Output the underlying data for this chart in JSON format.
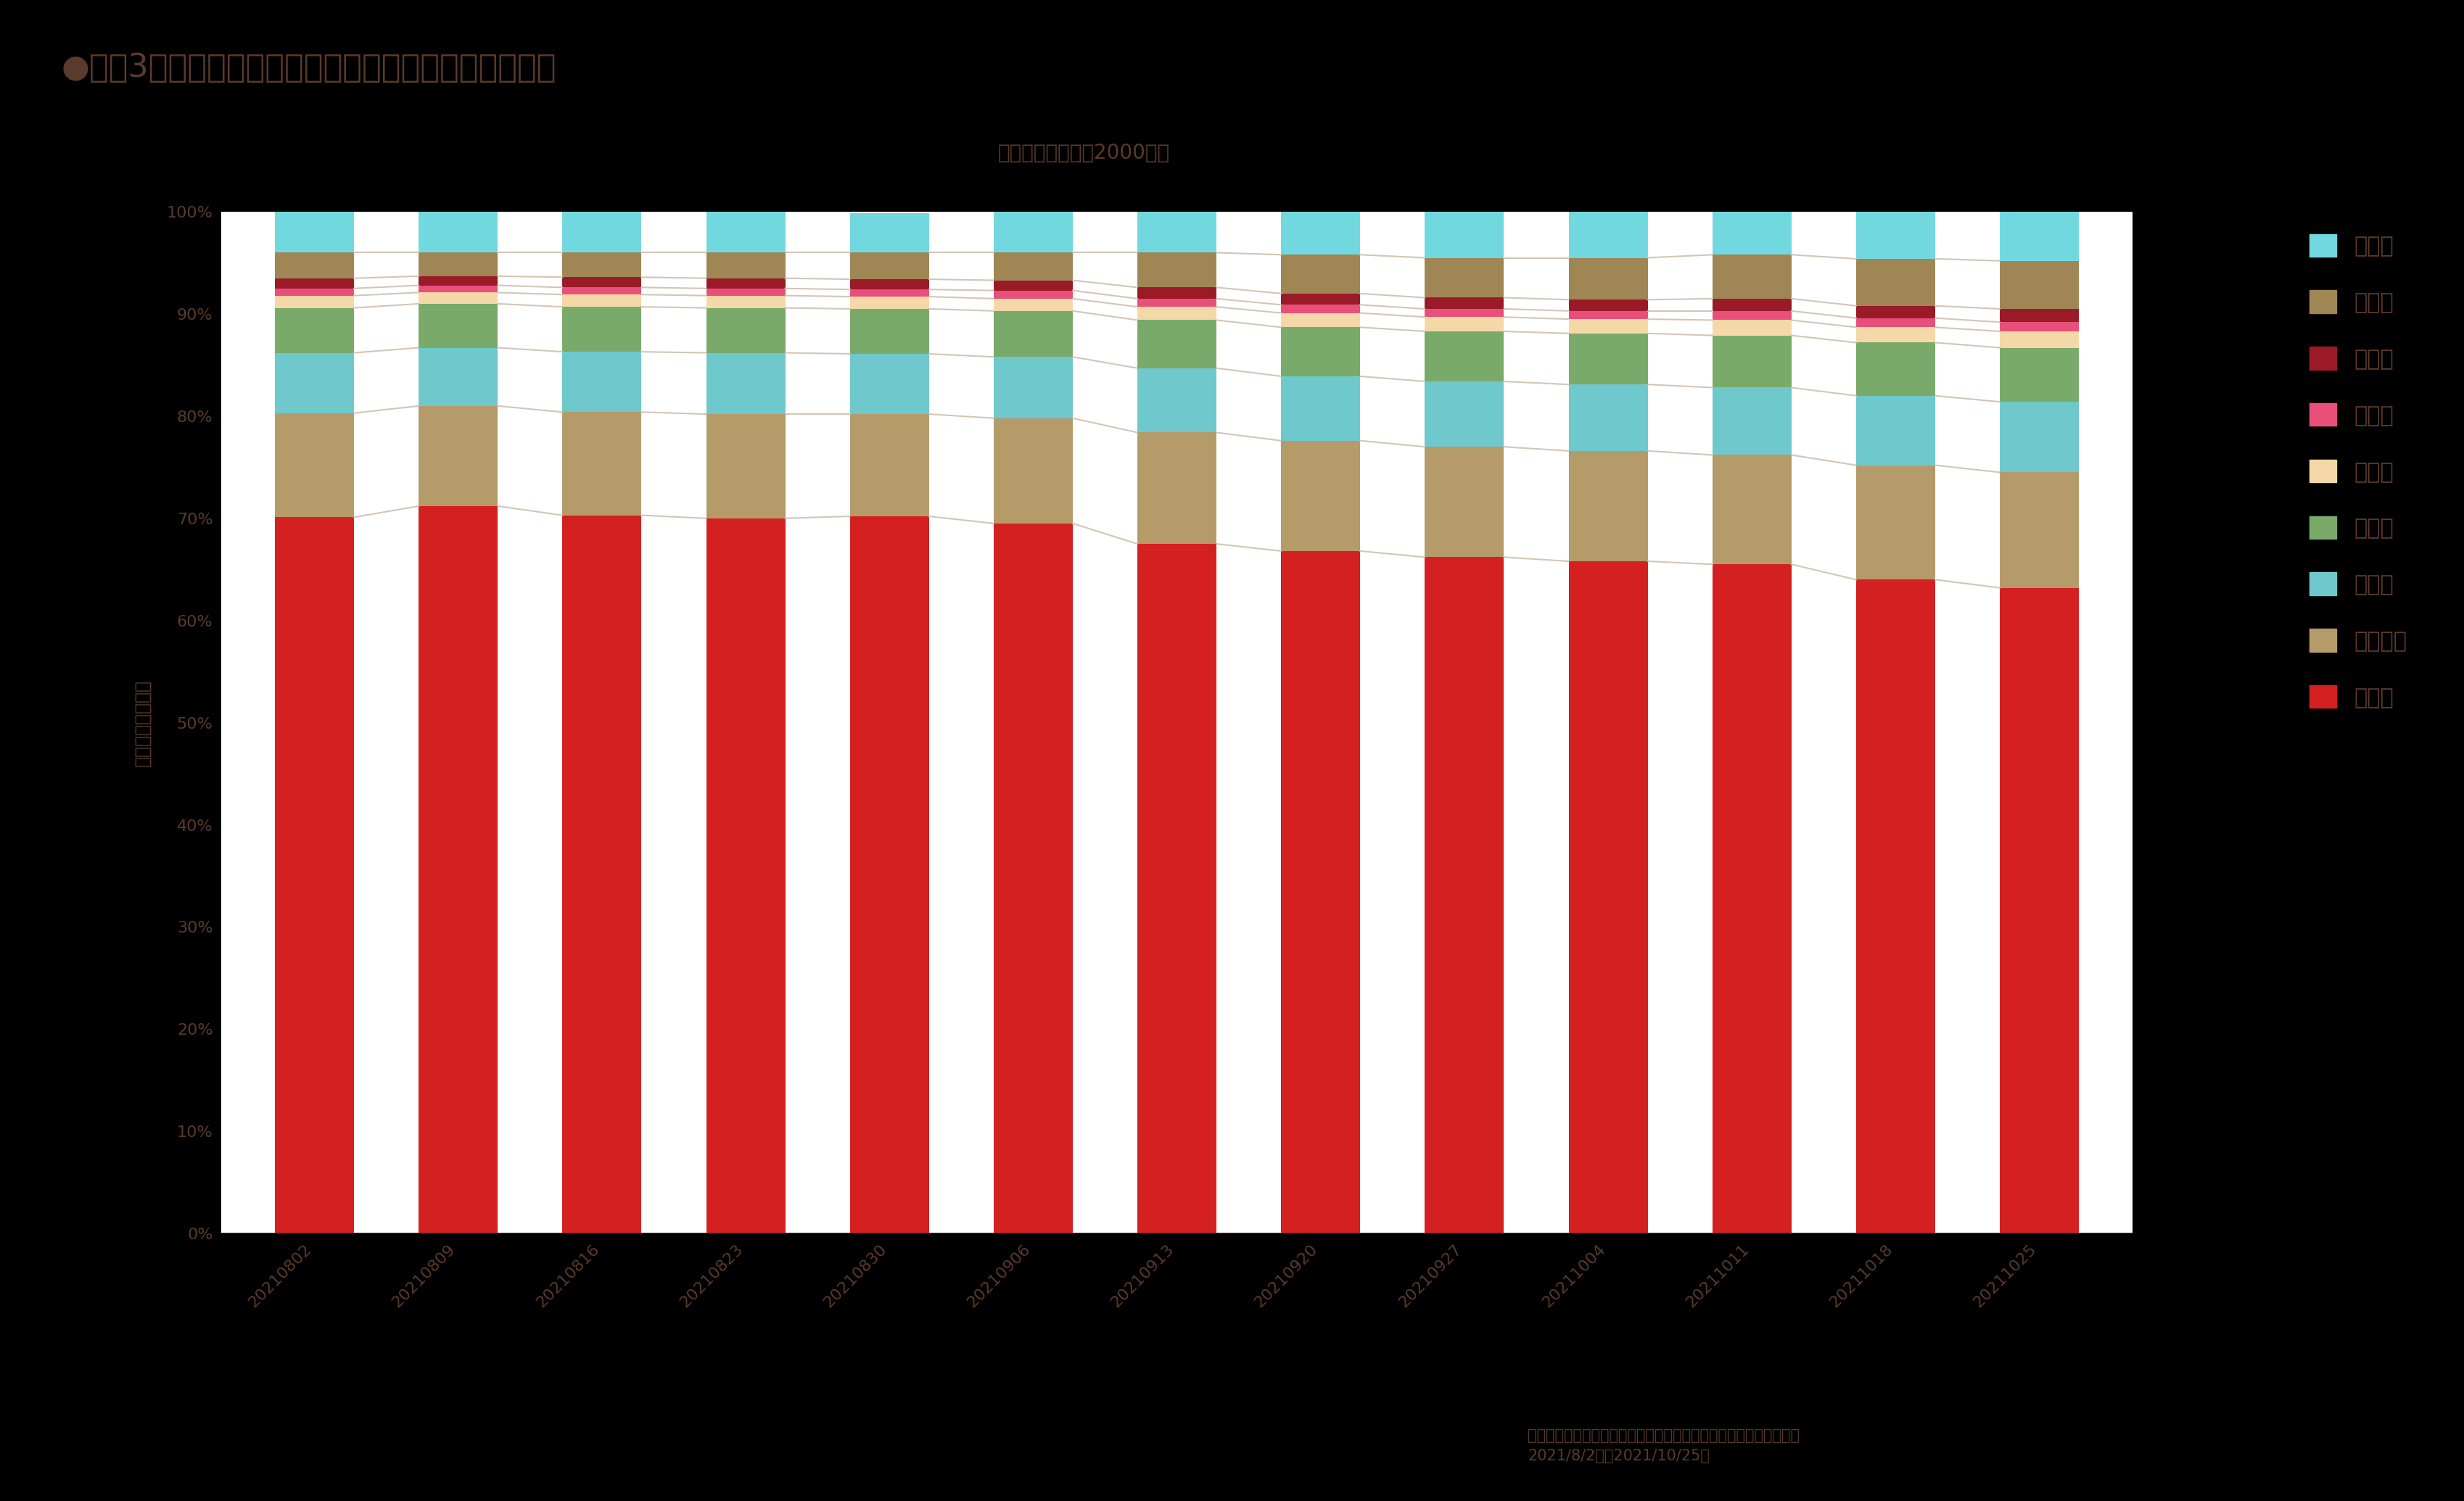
{
  "title": "●直近3ヶ月の休日　渋谷駅周辺人口居住地構成比推移",
  "subtitle": "渋谷駅　　休日・2000時台",
  "ylabel": "滞在者人口（人）",
  "footnote": "データ：モバイル空間統計・国内人口分布統計（リアルタイム版）\n2021/8/2週～2021/10/25週",
  "categories": [
    "20210802",
    "20210809",
    "20210816",
    "20210823",
    "20210830",
    "20210906",
    "20210913",
    "20210920",
    "20210927",
    "20211004",
    "20211011",
    "20211018",
    "20211025"
  ],
  "series": {
    "東京都": [
      70.1,
      71.2,
      70.3,
      70.0,
      70.2,
      69.5,
      67.5,
      66.8,
      66.2,
      65.8,
      65.5,
      64.0,
      63.2
    ],
    "神奈川県": [
      10.2,
      9.8,
      10.1,
      10.2,
      10.0,
      10.3,
      10.9,
      10.8,
      10.8,
      10.8,
      10.7,
      11.2,
      11.3
    ],
    "埼玉県": [
      5.9,
      5.7,
      5.9,
      6.0,
      5.9,
      6.0,
      6.3,
      6.3,
      6.4,
      6.5,
      6.6,
      6.8,
      6.9
    ],
    "千葉県": [
      4.4,
      4.3,
      4.4,
      4.4,
      4.4,
      4.5,
      4.7,
      4.8,
      4.9,
      5.0,
      5.1,
      5.2,
      5.3
    ],
    "大阪府": [
      1.2,
      1.1,
      1.2,
      1.2,
      1.2,
      1.2,
      1.3,
      1.4,
      1.4,
      1.4,
      1.5,
      1.5,
      1.6
    ],
    "茨城県": [
      0.7,
      0.7,
      0.7,
      0.7,
      0.7,
      0.8,
      0.8,
      0.8,
      0.8,
      0.8,
      0.9,
      0.9,
      0.9
    ],
    "愛知県": [
      1.0,
      0.9,
      1.0,
      1.0,
      1.0,
      1.0,
      1.1,
      1.1,
      1.1,
      1.1,
      1.2,
      1.2,
      1.3
    ],
    "静岡県": [
      2.5,
      2.3,
      2.4,
      2.5,
      2.6,
      2.7,
      3.4,
      3.8,
      3.9,
      4.1,
      4.3,
      4.6,
      4.7
    ],
    "兵庫県": [
      4.0,
      4.0,
      4.0,
      4.0,
      3.9,
      4.0,
      4.0,
      4.2,
      4.5,
      4.5,
      4.2,
      4.6,
      4.8
    ]
  },
  "colors": {
    "東京都": "#d42020",
    "神奈川県": "#b59a6a",
    "埼玉県": "#6ec8cc",
    "千葉県": "#7aaa6a",
    "大阪府": "#f5d8a8",
    "茨城県": "#e8507a",
    "愛知県": "#9b1a28",
    "静岡県": "#a08555",
    "兵庫県": "#72d8e0"
  },
  "background_color": "#ffffff",
  "fig_background_color": "#000000",
  "text_color": "#5a3a2a",
  "line_color": "#ccbbaa",
  "title_fontsize": 32,
  "subtitle_fontsize": 20,
  "tick_fontsize": 16,
  "legend_fontsize": 22,
  "ylabel_fontsize": 18,
  "bar_width": 0.55,
  "ylim": [
    0,
    100
  ]
}
